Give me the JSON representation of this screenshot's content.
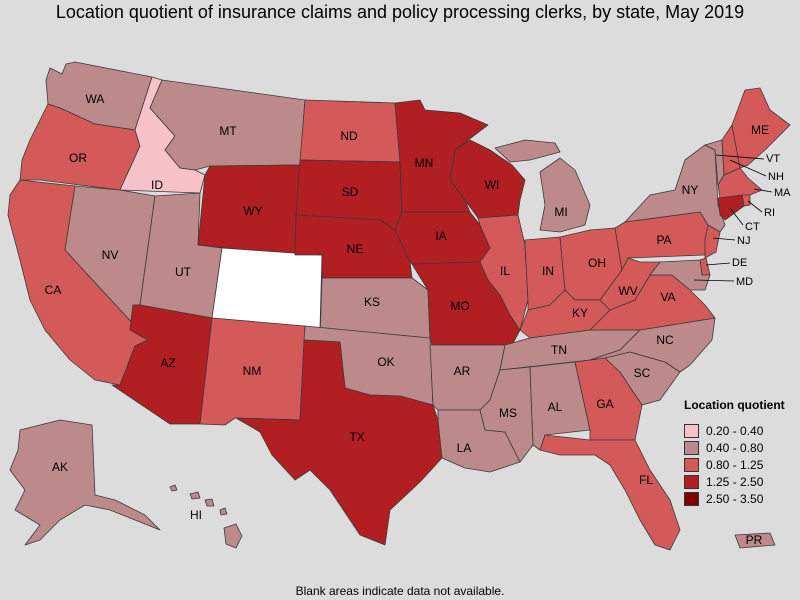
{
  "title": "Location quotient of insurance claims and policy processing clerks, by state, May 2019",
  "footnote": "Blank areas indicate data not available.",
  "legend": {
    "title": "Location quotient",
    "items": [
      {
        "range": "0.20 - 0.40",
        "color": "#f7c2c8"
      },
      {
        "range": "0.40 - 0.80",
        "color": "#bc8a8a"
      },
      {
        "range": "0.80 - 1.25",
        "color": "#d45a5a"
      },
      {
        "range": "1.25 - 2.50",
        "color": "#b21f22"
      },
      {
        "range": "2.50 - 3.50",
        "color": "#800000"
      }
    ]
  },
  "no_data_color": "#ffffff",
  "states": {
    "WA": {
      "label": "WA",
      "class": "0.40 - 0.80"
    },
    "OR": {
      "label": "OR",
      "class": "0.80 - 1.25"
    },
    "CA": {
      "label": "CA",
      "class": "0.80 - 1.25"
    },
    "ID": {
      "label": "ID",
      "class": "0.20 - 0.40"
    },
    "NV": {
      "label": "NV",
      "class": "0.40 - 0.80"
    },
    "MT": {
      "label": "MT",
      "class": "0.40 - 0.80"
    },
    "WY": {
      "label": "WY",
      "class": "1.25 - 2.50"
    },
    "UT": {
      "label": "UT",
      "class": "0.40 - 0.80"
    },
    "CO": {
      "label": "",
      "class": "none"
    },
    "AZ": {
      "label": "AZ",
      "class": "1.25 - 2.50"
    },
    "NM": {
      "label": "NM",
      "class": "0.80 - 1.25"
    },
    "ND": {
      "label": "ND",
      "class": "0.80 - 1.25"
    },
    "SD": {
      "label": "SD",
      "class": "1.25 - 2.50"
    },
    "NE": {
      "label": "NE",
      "class": "1.25 - 2.50"
    },
    "KS": {
      "label": "KS",
      "class": "0.40 - 0.80"
    },
    "OK": {
      "label": "OK",
      "class": "0.40 - 0.80"
    },
    "TX": {
      "label": "TX",
      "class": "1.25 - 2.50"
    },
    "MN": {
      "label": "MN",
      "class": "1.25 - 2.50"
    },
    "IA": {
      "label": "IA",
      "class": "1.25 - 2.50"
    },
    "MO": {
      "label": "MO",
      "class": "1.25 - 2.50"
    },
    "AR": {
      "label": "AR",
      "class": "0.40 - 0.80"
    },
    "LA": {
      "label": "LA",
      "class": "0.40 - 0.80"
    },
    "WI": {
      "label": "WI",
      "class": "1.25 - 2.50"
    },
    "IL": {
      "label": "IL",
      "class": "0.80 - 1.25"
    },
    "MI": {
      "label": "MI",
      "class": "0.40 - 0.80"
    },
    "IN": {
      "label": "IN",
      "class": "0.80 - 1.25"
    },
    "OH": {
      "label": "OH",
      "class": "0.80 - 1.25"
    },
    "KY": {
      "label": "KY",
      "class": "0.80 - 1.25"
    },
    "TN": {
      "label": "TN",
      "class": "0.40 - 0.80"
    },
    "MS": {
      "label": "MS",
      "class": "0.40 - 0.80"
    },
    "AL": {
      "label": "AL",
      "class": "0.40 - 0.80"
    },
    "GA": {
      "label": "GA",
      "class": "0.80 - 1.25"
    },
    "FL": {
      "label": "FL",
      "class": "0.80 - 1.25"
    },
    "SC": {
      "label": "SC",
      "class": "0.40 - 0.80"
    },
    "NC": {
      "label": "NC",
      "class": "0.40 - 0.80"
    },
    "VA": {
      "label": "VA",
      "class": "0.80 - 1.25"
    },
    "WV": {
      "label": "WV",
      "class": "0.80 - 1.25"
    },
    "PA": {
      "label": "PA",
      "class": "0.80 - 1.25"
    },
    "NY": {
      "label": "NY",
      "class": "0.40 - 0.80"
    },
    "VT": {
      "label": "VT",
      "class": "0.40 - 0.80"
    },
    "NH": {
      "label": "NH",
      "class": "0.80 - 1.25"
    },
    "ME": {
      "label": "ME",
      "class": "0.80 - 1.25"
    },
    "MA": {
      "label": "MA",
      "class": "0.80 - 1.25"
    },
    "RI": {
      "label": "RI",
      "class": "0.80 - 1.25"
    },
    "CT": {
      "label": "CT",
      "class": "1.25 - 2.50"
    },
    "NJ": {
      "label": "NJ",
      "class": "0.80 - 1.25"
    },
    "DE": {
      "label": "DE",
      "class": "0.80 - 1.25"
    },
    "MD": {
      "label": "MD",
      "class": "0.40 - 0.80"
    },
    "AK": {
      "label": "AK",
      "class": "0.40 - 0.80"
    },
    "HI": {
      "label": "HI",
      "class": "0.40 - 0.80"
    },
    "PR": {
      "label": "PR",
      "class": "0.40 - 0.80"
    }
  }
}
